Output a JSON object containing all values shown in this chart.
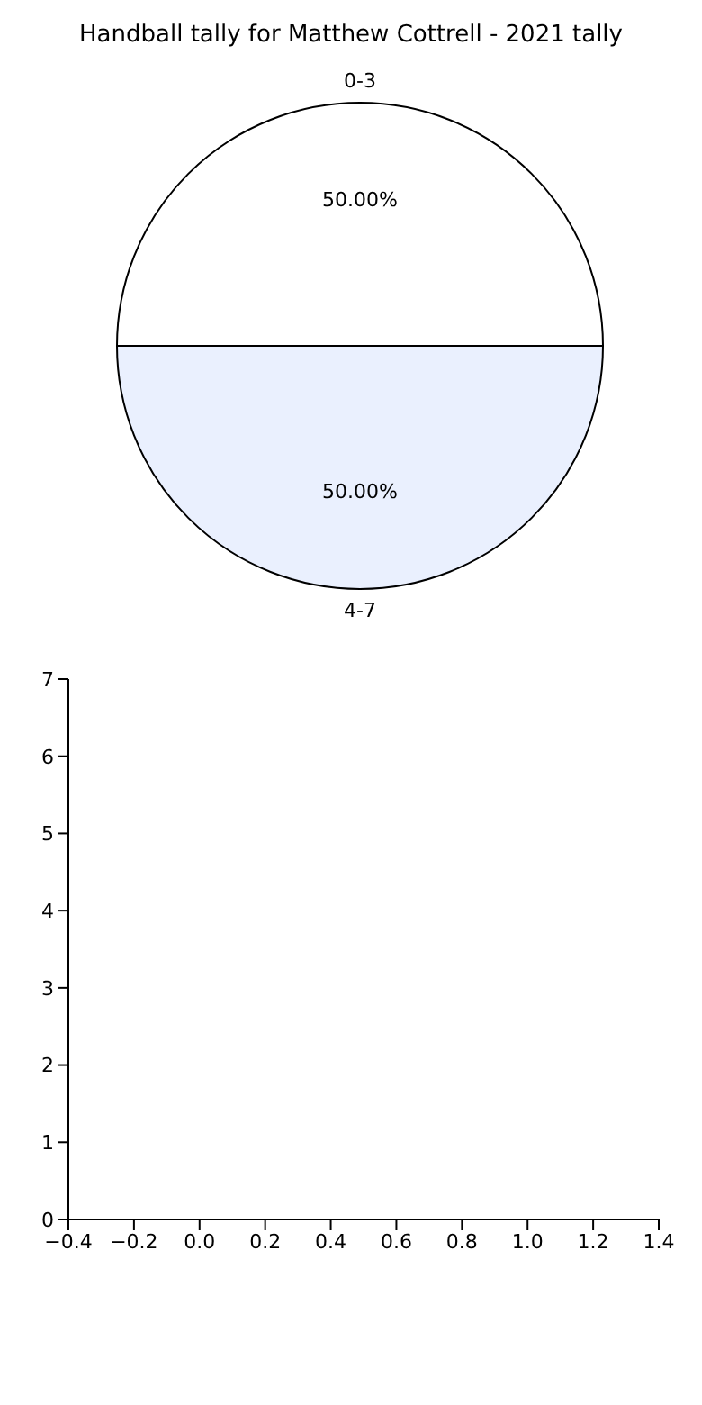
{
  "chart_data": [
    {
      "type": "pie",
      "title": "Handball tally for Matthew Cottrell - 2021 tally",
      "categories": [
        "0-3",
        "4-7"
      ],
      "values": [
        50,
        50
      ],
      "colors": [
        "#ffffff",
        "#eaf0fe"
      ],
      "value_labels": [
        "50.00%",
        "50.00%"
      ]
    },
    {
      "type": "scatter",
      "xlim": [
        -0.4,
        1.4
      ],
      "xticks": [
        {
          "value": -0.4,
          "label": "−0.4"
        },
        {
          "value": -0.2,
          "label": "−0.2"
        },
        {
          "value": 0,
          "label": "0.0"
        },
        {
          "value": 0.2,
          "label": "0.2"
        },
        {
          "value": 0.4,
          "label": "0.4"
        },
        {
          "value": 0.6,
          "label": "0.6"
        },
        {
          "value": 0.8,
          "label": "0.8"
        },
        {
          "value": 1,
          "label": "1.0"
        },
        {
          "value": 1.2,
          "label": "1.2"
        },
        {
          "value": 1.4,
          "label": "1.4"
        }
      ],
      "ylim": [
        0,
        7
      ],
      "yticks": [
        0,
        1,
        2,
        3,
        4,
        5,
        6,
        7
      ]
    }
  ]
}
